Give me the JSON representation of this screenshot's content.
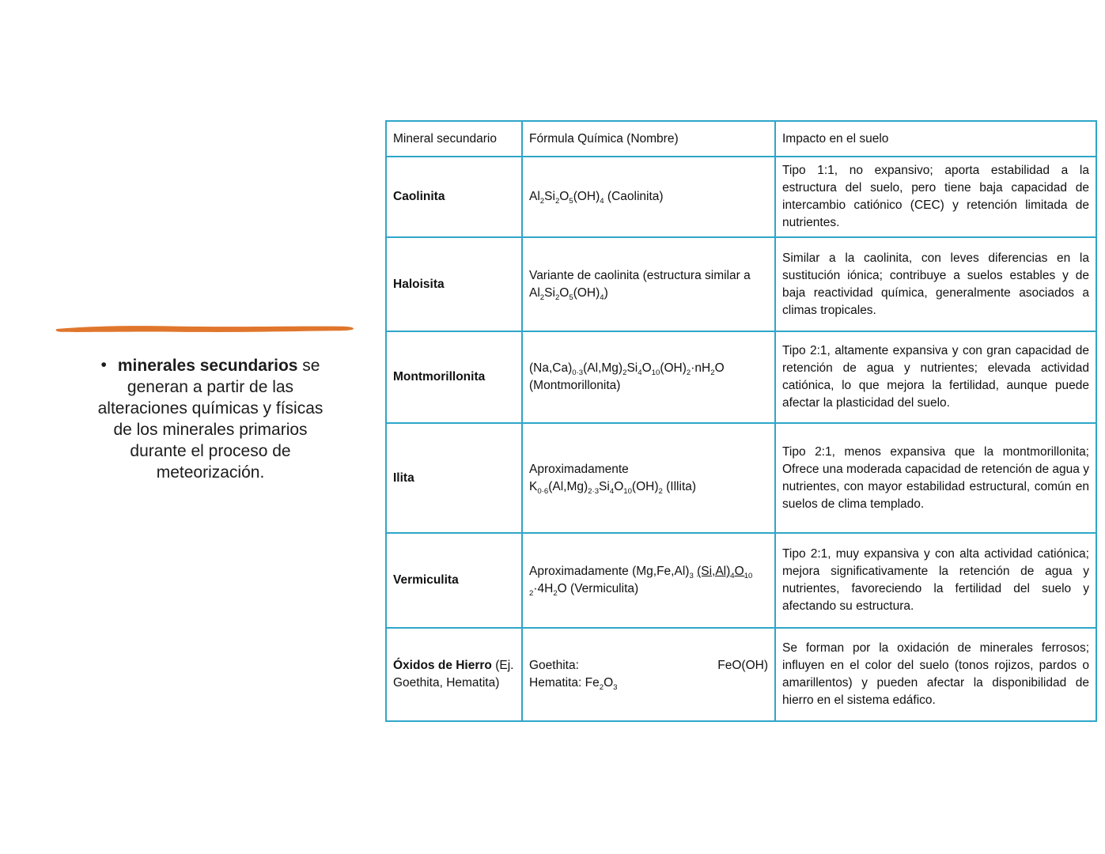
{
  "colors": {
    "brush_orange": "#E0762C",
    "table_border": "#2FA6C9",
    "text": "#1C1C1C"
  },
  "note": {
    "bullet": "•",
    "line1_bold": "minerales secundarios",
    "line1_rest": " se",
    "lines": [
      "generan a partir de las",
      "alteraciones químicas y físicas",
      "de los minerales primarios",
      "durante el proceso de",
      "meteorización."
    ]
  },
  "table": {
    "headers": [
      "Mineral secundario",
      "Fórmula Química (Nombre)",
      "Impacto en el suelo"
    ],
    "rows": [
      {
        "name": "Caolinita",
        "name_suffix": "",
        "formula": [
          {
            "x": "Al"
          },
          {
            "k": "sub",
            "x": "2"
          },
          {
            "x": "Si"
          },
          {
            "k": "sub",
            "x": "2"
          },
          {
            "x": "O"
          },
          {
            "k": "sub",
            "x": "5"
          },
          {
            "x": "(OH)"
          },
          {
            "k": "sub",
            "x": "4"
          },
          {
            "x": " (Caolinita)"
          }
        ],
        "impact": "Tipo 1:1, no expansivo; aporta estabilidad a la estructura del suelo, pero tiene baja capacidad de intercambio catiónico (CEC) y retención limitada de nutrientes."
      },
      {
        "name": "Haloisita",
        "name_suffix": "",
        "formula": [
          {
            "x": "Variante de caolinita (estructura similar a"
          },
          {
            "k": "br"
          },
          {
            "x": "Al"
          },
          {
            "k": "sub",
            "x": "2"
          },
          {
            "x": "Si"
          },
          {
            "k": "sub",
            "x": "2"
          },
          {
            "x": "O"
          },
          {
            "k": "sub",
            "x": "5"
          },
          {
            "x": "(OH)"
          },
          {
            "k": "sub",
            "x": "4"
          },
          {
            "x": ")"
          }
        ],
        "impact": "Similar a la caolinita, con leves diferencias en la sustitución iónica; contribuye a suelos estables y de baja reactividad química, generalmente asociados a climas tropicales."
      },
      {
        "name": "Montmorillonita",
        "name_suffix": "",
        "formula": [
          {
            "x": "(Na,Ca)"
          },
          {
            "k": "sub",
            "x": "0·3"
          },
          {
            "x": "(Al,Mg)"
          },
          {
            "k": "sub",
            "x": "2"
          },
          {
            "x": "Si"
          },
          {
            "k": "sub",
            "x": "4"
          },
          {
            "x": "O"
          },
          {
            "k": "sub",
            "x": "10"
          },
          {
            "x": "(OH)"
          },
          {
            "k": "sub",
            "x": "2"
          },
          {
            "x": "·nH"
          },
          {
            "k": "sub",
            "x": "2"
          },
          {
            "x": "O"
          },
          {
            "k": "br"
          },
          {
            "x": "(Montmorillonita)"
          }
        ],
        "impact": "Tipo 2:1, altamente expansiva y con gran capacidad de retención de agua y nutrientes; elevada actividad catiónica, lo que mejora la fertilidad, aunque puede afectar la plasticidad del suelo."
      },
      {
        "name": "Ilita",
        "name_suffix": "",
        "formula": [
          {
            "x": "Aproximadamente"
          },
          {
            "k": "br"
          },
          {
            "x": "K"
          },
          {
            "k": "sub",
            "x": "0·6"
          },
          {
            "x": "(Al,Mg)"
          },
          {
            "k": "sub",
            "x": "2·3"
          },
          {
            "x": "Si"
          },
          {
            "k": "sub",
            "x": "4"
          },
          {
            "x": "O"
          },
          {
            "k": "sub",
            "x": "10"
          },
          {
            "x": "(OH)"
          },
          {
            "k": "sub",
            "x": "2"
          },
          {
            "x": " (Illita)"
          }
        ],
        "impact": "Tipo 2:1, menos expansiva que la montmorillonita; Ofrece una moderada capacidad de retención de agua y nutrientes, con mayor estabilidad estructural, común en suelos de clima templado."
      },
      {
        "name": "Vermiculita",
        "name_suffix": "",
        "formula": [
          {
            "x": "Aproximadamente (Mg,Fe,Al)"
          },
          {
            "k": "sub",
            "x": "3"
          },
          {
            "x": " "
          },
          {
            "k": "u",
            "c": [
              {
                "x": "(Si,Al)"
              },
              {
                "k": "sub",
                "x": "4"
              },
              {
                "x": "O"
              },
              {
                "k": "sub",
                "x": "10"
              }
            ]
          },
          {
            "k": "br"
          },
          {
            "k": "sub",
            "x": "2"
          },
          {
            "x": "·4H"
          },
          {
            "k": "sub",
            "x": "2"
          },
          {
            "x": "O (Vermiculita)"
          }
        ],
        "impact": "Tipo 2:1, muy expansiva y con alta actividad catiónica; mejora significativamente la retención de agua y nutrientes, favoreciendo la fertilidad del suelo y afectando su estructura."
      },
      {
        "name": "Óxidos de Hierro",
        "name_suffix": " (Ej. Goethita, Hematita)",
        "formula": [
          {
            "x": "Goethita:"
          },
          {
            "k": "right",
            "x": "FeO(OH)"
          },
          {
            "k": "br"
          },
          {
            "x": "Hematita: Fe"
          },
          {
            "k": "sub",
            "x": "2"
          },
          {
            "x": "O"
          },
          {
            "k": "sub",
            "x": "3"
          }
        ],
        "impact": "Se forman por la oxidación de minerales ferrosos; influyen en el color del suelo (tonos rojizos, pardos o amarillentos) y pueden afectar la disponibilidad de hierro en el sistema edáfico."
      }
    ]
  }
}
